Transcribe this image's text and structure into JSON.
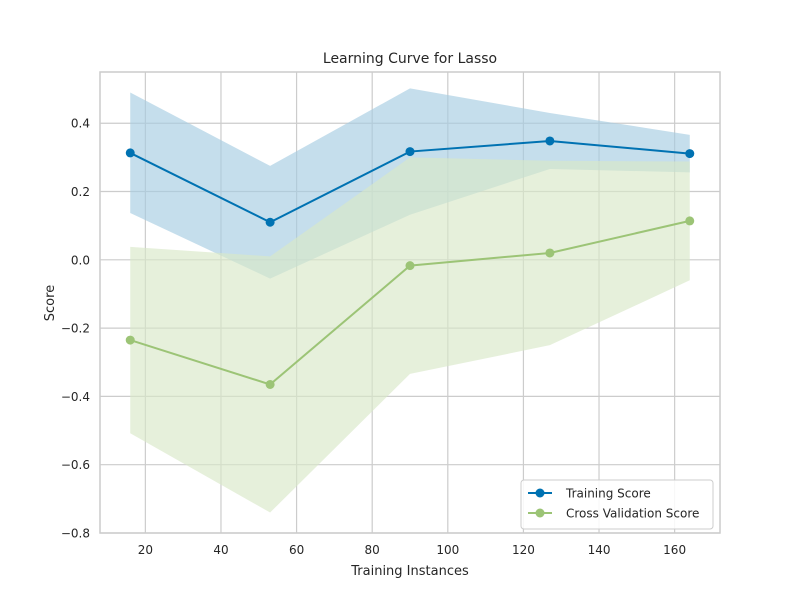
{
  "chart_data": {
    "type": "line",
    "title": "Learning Curve for Lasso",
    "xlabel": "Training Instances",
    "ylabel": "Score",
    "xlim": [
      8,
      172
    ],
    "ylim": [
      -0.8,
      0.55
    ],
    "xticks": [
      20,
      40,
      60,
      80,
      100,
      120,
      140,
      160
    ],
    "yticks": [
      -0.8,
      -0.6,
      -0.4,
      -0.2,
      0.0,
      0.2,
      0.4
    ],
    "ytick_labels": [
      "−0.8",
      "−0.6",
      "−0.4",
      "−0.2",
      "0.0",
      "0.2",
      "0.4"
    ],
    "grid": true,
    "legend_position": "lower-right",
    "x": [
      16,
      53,
      90,
      127,
      164
    ],
    "series": [
      {
        "name": "Training Score",
        "color": "#0072b2",
        "band_color": "#a6cde2",
        "values": [
          0.313,
          0.11,
          0.317,
          0.348,
          0.311
        ],
        "upper": [
          0.49,
          0.275,
          0.502,
          0.43,
          0.366
        ],
        "lower": [
          0.137,
          -0.055,
          0.132,
          0.266,
          0.256
        ]
      },
      {
        "name": "Cross Validation Score",
        "color": "#9cc476",
        "band_color": "#d9e8c7",
        "values": [
          -0.235,
          -0.365,
          -0.017,
          0.02,
          0.114
        ],
        "upper": [
          0.038,
          0.01,
          0.3,
          0.29,
          0.288
        ],
        "lower": [
          -0.508,
          -0.74,
          -0.334,
          -0.25,
          -0.06
        ]
      }
    ]
  }
}
